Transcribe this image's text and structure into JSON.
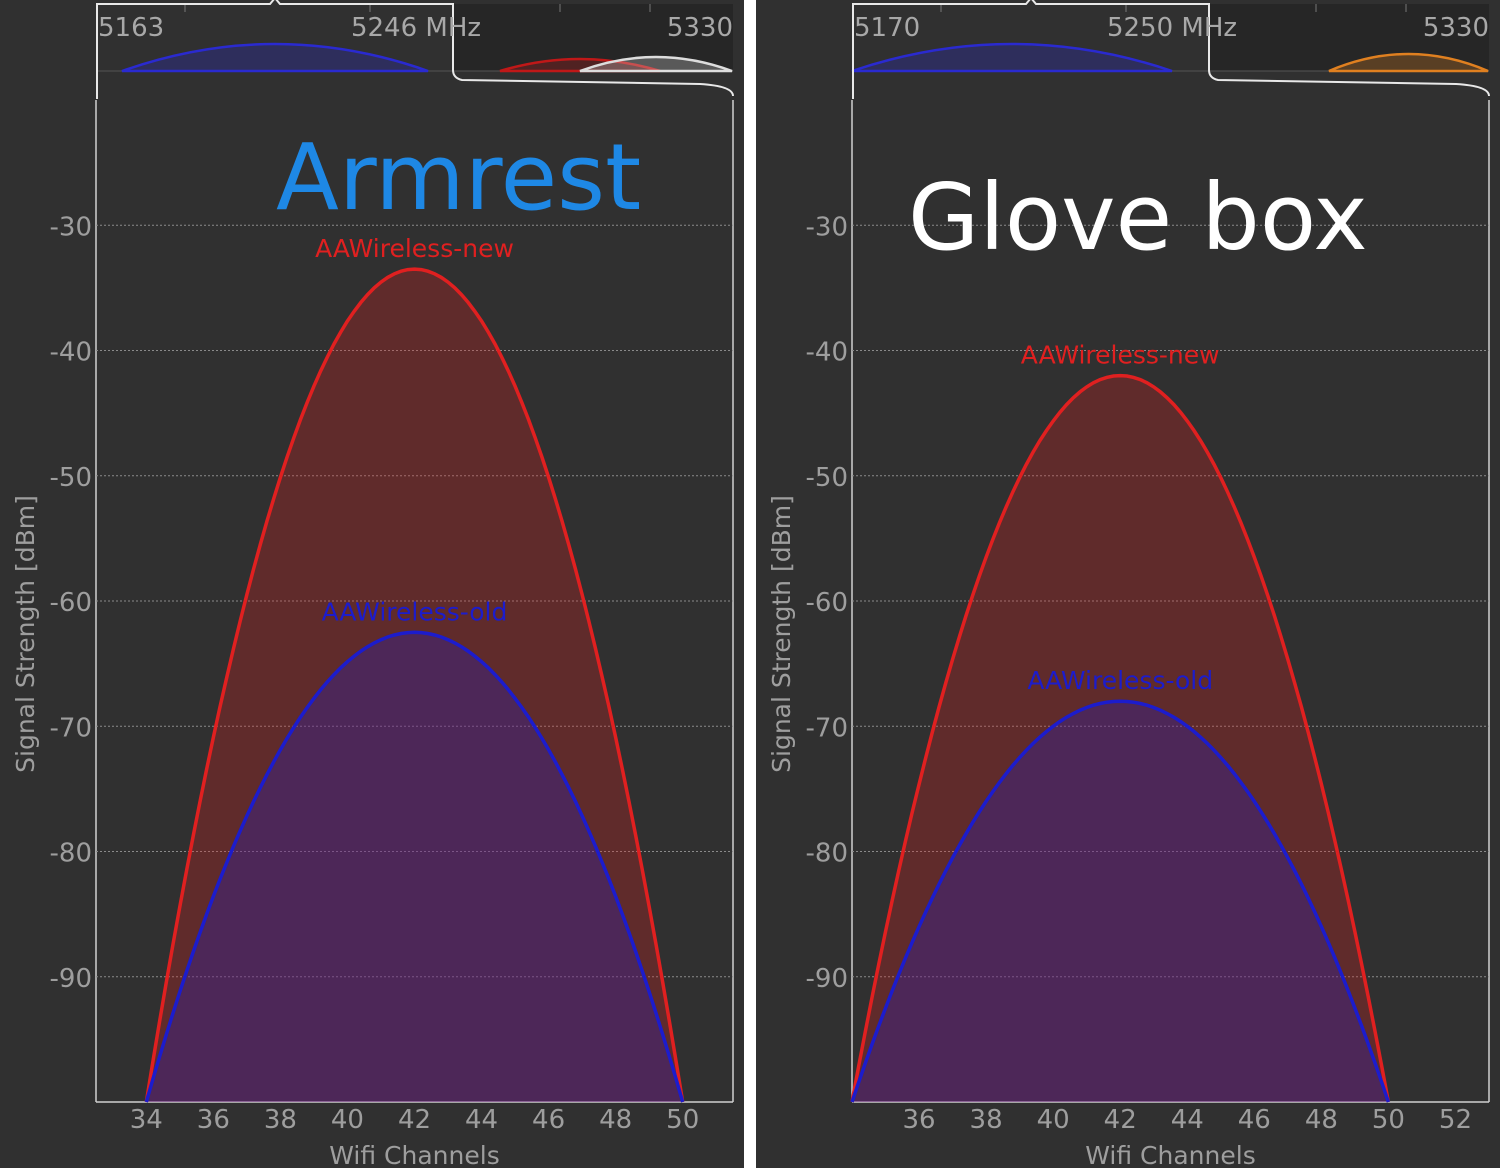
{
  "panels": [
    {
      "title": "Armrest",
      "title_color": "#1e88e5",
      "overview": {
        "freq_left": "5163",
        "freq_center": "5246 MHz",
        "freq_right": "5330"
      },
      "chart_data": {
        "type": "area",
        "xlabel": "Wifi Channels",
        "ylabel": "Signal Strength [dBm]",
        "xlim": [
          32.5,
          51.5
        ],
        "ylim": [
          -100,
          -20
        ],
        "x_ticks": [
          34,
          36,
          38,
          40,
          42,
          44,
          46,
          48,
          50
        ],
        "y_ticks": [
          -30,
          -40,
          -50,
          -60,
          -70,
          -80,
          -90
        ],
        "grid": true,
        "series": [
          {
            "name": "AAWireless-new",
            "color": "#e02020",
            "center_channel": 42,
            "x_start": 34,
            "x_end": 50,
            "peak": -33.5
          },
          {
            "name": "AAWireless-old",
            "color": "#1c1ccc",
            "center_channel": 42,
            "x_start": 34,
            "x_end": 50,
            "peak": -62.5
          }
        ]
      }
    },
    {
      "title": "Glove box",
      "title_color": "#ffffff",
      "overview": {
        "freq_left": "5170",
        "freq_center": "5250 MHz",
        "freq_right": "5330"
      },
      "chart_data": {
        "type": "area",
        "xlabel": "Wifi Channels",
        "ylabel": "Signal Strength [dBm]",
        "xlim": [
          34,
          53
        ],
        "ylim": [
          -100,
          -20
        ],
        "x_ticks": [
          36,
          38,
          40,
          42,
          44,
          46,
          48,
          50,
          52
        ],
        "y_ticks": [
          -30,
          -40,
          -50,
          -60,
          -70,
          -80,
          -90
        ],
        "grid": true,
        "series": [
          {
            "name": "AAWireless-new",
            "color": "#e02020",
            "center_channel": 42,
            "x_start": 34,
            "x_end": 50,
            "peak": -42
          },
          {
            "name": "AAWireless-old",
            "color": "#1c1ccc",
            "center_channel": 42,
            "x_start": 34,
            "x_end": 50,
            "peak": -68
          }
        ]
      }
    }
  ]
}
